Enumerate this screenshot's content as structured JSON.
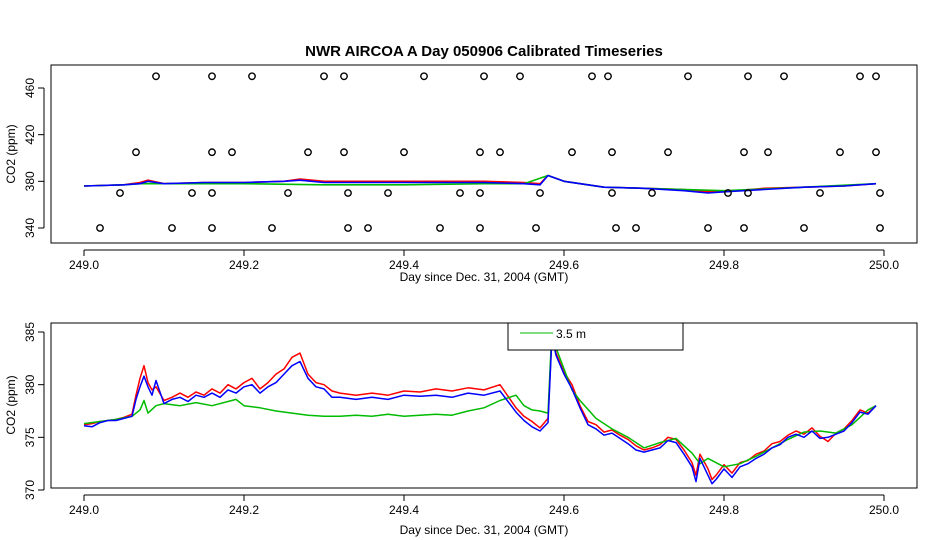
{
  "chart_data": [
    {
      "type": "line",
      "title": "NWR AIRCOA A  Day 050906  Calibrated Timeseries",
      "xlabel": "Day since Dec. 31, 2004 (GMT)",
      "ylabel": "CO2 (ppm)",
      "xlim": [
        249.0,
        250.0
      ],
      "ylim": [
        333,
        473
      ],
      "xticks": [
        249.0,
        249.2,
        249.4,
        249.6,
        249.8,
        250.0
      ],
      "xtick_labels": [
        "249.0",
        "249.2",
        "249.4",
        "249.6",
        "249.8",
        "250.0"
      ],
      "yticks": [
        340,
        380,
        420,
        460
      ],
      "ytick_labels": [
        "340",
        "380",
        "420",
        "460"
      ],
      "grid": false,
      "series": [
        {
          "color": "#ff0000",
          "x": [
            249.0,
            249.05,
            249.07,
            249.08,
            249.1,
            249.15,
            249.2,
            249.25,
            249.27,
            249.3,
            249.35,
            249.4,
            249.45,
            249.5,
            249.55,
            249.57,
            249.58,
            249.6,
            249.65,
            249.7,
            249.75,
            249.78,
            249.8,
            249.85,
            249.9,
            249.95,
            249.99
          ],
          "y": [
            376,
            377,
            379,
            381,
            378,
            379,
            379,
            380,
            382,
            380,
            380,
            380,
            380,
            380,
            379,
            378,
            385,
            380,
            375,
            374,
            373,
            371,
            371,
            374,
            375,
            376,
            378
          ]
        },
        {
          "color": "#00bb00",
          "x": [
            249.0,
            249.05,
            249.07,
            249.1,
            249.15,
            249.2,
            249.3,
            249.4,
            249.5,
            249.55,
            249.58,
            249.6,
            249.65,
            249.7,
            249.8,
            249.9,
            249.99
          ],
          "y": [
            376,
            377,
            378,
            378,
            378,
            378,
            377,
            377,
            378,
            378,
            385,
            380,
            375,
            374,
            372,
            375,
            378
          ]
        },
        {
          "color": "#0000ff",
          "x": [
            249.0,
            249.05,
            249.07,
            249.08,
            249.1,
            249.15,
            249.2,
            249.25,
            249.27,
            249.3,
            249.35,
            249.4,
            249.45,
            249.5,
            249.55,
            249.57,
            249.58,
            249.6,
            249.65,
            249.7,
            249.75,
            249.78,
            249.8,
            249.85,
            249.9,
            249.95,
            249.99
          ],
          "y": [
            376,
            377,
            378,
            380,
            378,
            379,
            379,
            380,
            381,
            379,
            379,
            379,
            379,
            379,
            378,
            377,
            385,
            380,
            375,
            374,
            372,
            370,
            371,
            373,
            375,
            376,
            378
          ]
        }
      ],
      "calibration_points": [
        {
          "x": 249.09,
          "y": 470
        },
        {
          "x": 249.16,
          "y": 470
        },
        {
          "x": 249.21,
          "y": 470
        },
        {
          "x": 249.3,
          "y": 470
        },
        {
          "x": 249.325,
          "y": 470
        },
        {
          "x": 249.425,
          "y": 470
        },
        {
          "x": 249.5,
          "y": 470
        },
        {
          "x": 249.545,
          "y": 470
        },
        {
          "x": 249.635,
          "y": 470
        },
        {
          "x": 249.655,
          "y": 470
        },
        {
          "x": 249.755,
          "y": 470
        },
        {
          "x": 249.83,
          "y": 470
        },
        {
          "x": 249.875,
          "y": 470
        },
        {
          "x": 249.97,
          "y": 470
        },
        {
          "x": 249.99,
          "y": 470
        },
        {
          "x": 249.065,
          "y": 405
        },
        {
          "x": 249.16,
          "y": 405
        },
        {
          "x": 249.185,
          "y": 405
        },
        {
          "x": 249.28,
          "y": 405
        },
        {
          "x": 249.325,
          "y": 405
        },
        {
          "x": 249.4,
          "y": 405
        },
        {
          "x": 249.495,
          "y": 405
        },
        {
          "x": 249.52,
          "y": 405
        },
        {
          "x": 249.61,
          "y": 405
        },
        {
          "x": 249.66,
          "y": 405
        },
        {
          "x": 249.73,
          "y": 405
        },
        {
          "x": 249.825,
          "y": 405
        },
        {
          "x": 249.855,
          "y": 405
        },
        {
          "x": 249.945,
          "y": 405
        },
        {
          "x": 249.99,
          "y": 405
        },
        {
          "x": 249.045,
          "y": 370
        },
        {
          "x": 249.135,
          "y": 370
        },
        {
          "x": 249.16,
          "y": 370
        },
        {
          "x": 249.255,
          "y": 370
        },
        {
          "x": 249.33,
          "y": 370
        },
        {
          "x": 249.38,
          "y": 370
        },
        {
          "x": 249.47,
          "y": 370
        },
        {
          "x": 249.495,
          "y": 370
        },
        {
          "x": 249.57,
          "y": 370
        },
        {
          "x": 249.66,
          "y": 370
        },
        {
          "x": 249.71,
          "y": 370
        },
        {
          "x": 249.805,
          "y": 370
        },
        {
          "x": 249.83,
          "y": 370
        },
        {
          "x": 249.92,
          "y": 370
        },
        {
          "x": 249.995,
          "y": 370
        },
        {
          "x": 249.02,
          "y": 340
        },
        {
          "x": 249.11,
          "y": 340
        },
        {
          "x": 249.16,
          "y": 340
        },
        {
          "x": 249.235,
          "y": 340
        },
        {
          "x": 249.33,
          "y": 340
        },
        {
          "x": 249.355,
          "y": 340
        },
        {
          "x": 249.445,
          "y": 340
        },
        {
          "x": 249.495,
          "y": 340
        },
        {
          "x": 249.565,
          "y": 340
        },
        {
          "x": 249.665,
          "y": 340
        },
        {
          "x": 249.69,
          "y": 340
        },
        {
          "x": 249.78,
          "y": 340
        },
        {
          "x": 249.825,
          "y": 340
        },
        {
          "x": 249.9,
          "y": 340
        },
        {
          "x": 249.995,
          "y": 340
        }
      ],
      "colors": {
        "red": "#ff0000",
        "green": "#00bb00",
        "blue": "#0000ff"
      }
    },
    {
      "type": "line",
      "title": "",
      "xlabel": "Day since Dec. 31, 2004 (GMT)",
      "ylabel": "CO2 (ppm)",
      "xlim": [
        249.0,
        250.0
      ],
      "ylim": [
        370,
        385.5
      ],
      "xticks": [
        249.0,
        249.2,
        249.4,
        249.6,
        249.8,
        250.0
      ],
      "xtick_labels": [
        "249.0",
        "249.2",
        "249.4",
        "249.6",
        "249.8",
        "250.0"
      ],
      "yticks": [
        370,
        375,
        380,
        385
      ],
      "ytick_labels": [
        "370",
        "375",
        "380",
        "385"
      ],
      "grid": false,
      "legend_position": "top-center",
      "legend": [
        {
          "label": "3.5 m",
          "color": "#00bb00"
        }
      ],
      "series": [
        {
          "color": "#ff0000",
          "x": [
            249.0,
            249.01,
            249.02,
            249.03,
            249.04,
            249.05,
            249.06,
            249.065,
            249.07,
            249.075,
            249.08,
            249.085,
            249.09,
            249.1,
            249.11,
            249.12,
            249.13,
            249.14,
            249.15,
            249.16,
            249.17,
            249.18,
            249.19,
            249.2,
            249.21,
            249.22,
            249.23,
            249.24,
            249.25,
            249.26,
            249.27,
            249.28,
            249.29,
            249.3,
            249.31,
            249.32,
            249.34,
            249.36,
            249.38,
            249.4,
            249.42,
            249.44,
            249.46,
            249.48,
            249.5,
            249.52,
            249.54,
            249.55,
            249.56,
            249.57,
            249.58,
            249.585,
            249.59,
            249.6,
            249.61,
            249.62,
            249.63,
            249.64,
            249.65,
            249.66,
            249.67,
            249.68,
            249.69,
            249.7,
            249.71,
            249.72,
            249.73,
            249.74,
            249.75,
            249.76,
            249.765,
            249.77,
            249.78,
            249.785,
            249.79,
            249.8,
            249.81,
            249.82,
            249.83,
            249.84,
            249.85,
            249.86,
            249.87,
            249.88,
            249.89,
            249.9,
            249.91,
            249.92,
            249.93,
            249.94,
            249.95,
            249.96,
            249.97,
            249.98,
            249.99
          ],
          "y": [
            376.2,
            376.3,
            376.5,
            376.6,
            376.7,
            376.9,
            377.2,
            379.0,
            380.6,
            381.8,
            380.2,
            379.5,
            379.8,
            378.5,
            378.8,
            379.2,
            378.8,
            379.3,
            379.0,
            379.6,
            379.2,
            380.0,
            379.6,
            380.2,
            380.6,
            379.6,
            380.2,
            381.0,
            381.5,
            382.6,
            383.0,
            381.0,
            380.2,
            380.0,
            379.4,
            379.2,
            379.0,
            379.2,
            379.0,
            379.4,
            379.3,
            379.6,
            379.4,
            379.7,
            379.5,
            380.0,
            377.8,
            377.0,
            376.5,
            375.9,
            376.8,
            384.8,
            383.0,
            381.2,
            380.0,
            378.0,
            376.5,
            376.2,
            375.5,
            375.7,
            375.2,
            374.8,
            374.2,
            373.8,
            374.0,
            374.3,
            375.0,
            374.8,
            373.8,
            372.6,
            371.4,
            373.4,
            372.0,
            371.0,
            371.4,
            372.4,
            371.6,
            372.6,
            372.8,
            373.4,
            373.7,
            374.4,
            374.6,
            375.2,
            375.6,
            375.3,
            375.9,
            375.1,
            374.6,
            375.4,
            375.8,
            376.6,
            377.6,
            377.3,
            378.0
          ]
        },
        {
          "color": "#00bb00",
          "x": [
            249.0,
            249.02,
            249.04,
            249.06,
            249.07,
            249.075,
            249.08,
            249.09,
            249.1,
            249.12,
            249.14,
            249.16,
            249.18,
            249.19,
            249.2,
            249.22,
            249.24,
            249.26,
            249.28,
            249.3,
            249.32,
            249.34,
            249.36,
            249.38,
            249.4,
            249.42,
            249.44,
            249.46,
            249.48,
            249.5,
            249.52,
            249.54,
            249.55,
            249.56,
            249.57,
            249.58,
            249.585,
            249.59,
            249.6,
            249.61,
            249.62,
            249.64,
            249.66,
            249.68,
            249.7,
            249.72,
            249.74,
            249.76,
            249.77,
            249.78,
            249.8,
            249.82,
            249.84,
            249.86,
            249.88,
            249.9,
            249.92,
            249.94,
            249.96,
            249.98,
            249.99
          ],
          "y": [
            376.3,
            376.5,
            376.7,
            377.0,
            377.6,
            378.5,
            377.3,
            378.0,
            378.2,
            378.0,
            378.3,
            378.0,
            378.4,
            378.6,
            378.0,
            377.8,
            377.5,
            377.3,
            377.1,
            377.0,
            377.0,
            377.1,
            377.0,
            377.2,
            377.0,
            377.1,
            377.2,
            377.1,
            377.5,
            377.8,
            378.5,
            379.0,
            378.0,
            377.6,
            377.5,
            377.3,
            385.5,
            383.5,
            381.5,
            379.5,
            378.5,
            376.8,
            375.8,
            375.0,
            374.0,
            374.5,
            374.9,
            373.5,
            372.5,
            373.0,
            372.2,
            372.5,
            373.2,
            374.0,
            374.8,
            375.5,
            375.6,
            375.4,
            376.2,
            377.6,
            378.0
          ]
        },
        {
          "color": "#0000ff",
          "x": [
            249.0,
            249.01,
            249.02,
            249.03,
            249.04,
            249.05,
            249.06,
            249.065,
            249.07,
            249.075,
            249.08,
            249.085,
            249.09,
            249.1,
            249.11,
            249.12,
            249.13,
            249.14,
            249.15,
            249.16,
            249.17,
            249.18,
            249.19,
            249.2,
            249.21,
            249.22,
            249.23,
            249.24,
            249.25,
            249.26,
            249.27,
            249.28,
            249.29,
            249.3,
            249.31,
            249.32,
            249.34,
            249.36,
            249.38,
            249.4,
            249.42,
            249.44,
            249.46,
            249.48,
            249.5,
            249.52,
            249.54,
            249.55,
            249.56,
            249.57,
            249.58,
            249.585,
            249.59,
            249.6,
            249.61,
            249.62,
            249.63,
            249.64,
            249.65,
            249.66,
            249.67,
            249.68,
            249.69,
            249.7,
            249.71,
            249.72,
            249.73,
            249.74,
            249.75,
            249.76,
            249.765,
            249.77,
            249.78,
            249.785,
            249.79,
            249.8,
            249.81,
            249.82,
            249.83,
            249.84,
            249.85,
            249.86,
            249.87,
            249.88,
            249.89,
            249.9,
            249.91,
            249.92,
            249.93,
            249.94,
            249.95,
            249.96,
            249.97,
            249.98,
            249.99
          ],
          "y": [
            376.1,
            376.0,
            376.4,
            376.6,
            376.6,
            376.8,
            377.0,
            378.6,
            379.8,
            380.8,
            379.8,
            379.0,
            380.4,
            378.2,
            378.6,
            378.8,
            378.4,
            379.0,
            378.8,
            379.2,
            378.8,
            379.5,
            379.2,
            379.8,
            380.0,
            379.2,
            379.8,
            380.2,
            381.0,
            381.8,
            382.2,
            380.6,
            379.8,
            379.6,
            378.8,
            378.8,
            378.6,
            378.8,
            378.6,
            379.0,
            378.9,
            379.0,
            378.8,
            379.2,
            379.0,
            379.4,
            377.4,
            376.6,
            376.0,
            375.6,
            376.4,
            384.6,
            382.8,
            381.0,
            379.6,
            377.8,
            376.2,
            375.8,
            375.2,
            375.4,
            374.9,
            374.4,
            373.8,
            373.6,
            373.8,
            374.0,
            374.7,
            374.5,
            373.4,
            372.2,
            370.8,
            373.0,
            371.4,
            370.6,
            371.0,
            372.0,
            371.2,
            372.2,
            372.5,
            373.0,
            373.4,
            374.0,
            374.3,
            375.0,
            375.3,
            375.0,
            375.6,
            374.9,
            375.0,
            375.3,
            375.6,
            376.4,
            377.4,
            377.2,
            378.0
          ]
        }
      ],
      "colors": {
        "red": "#ff0000",
        "green": "#00bb00",
        "blue": "#0000ff"
      }
    }
  ]
}
